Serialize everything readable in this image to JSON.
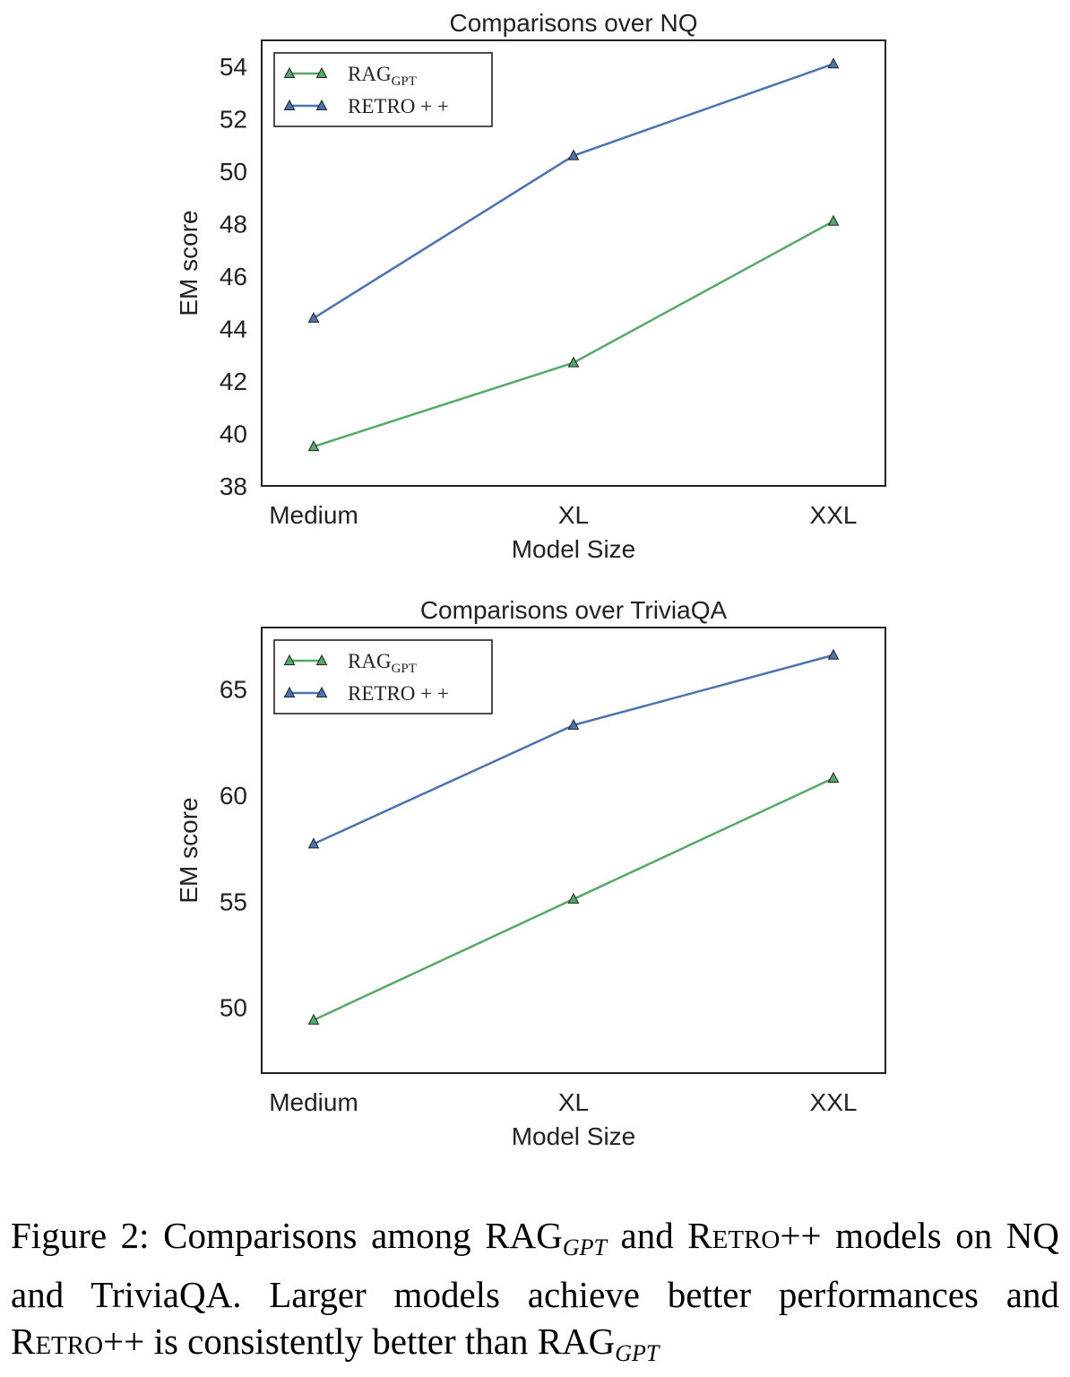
{
  "chart_data": [
    {
      "type": "line",
      "title": "Comparisons over NQ",
      "xlabel": "Model Size",
      "ylabel": "EM score",
      "categories": [
        "Medium",
        "XL",
        "XXL"
      ],
      "ylim": [
        38,
        55
      ],
      "yticks": [
        38,
        40,
        42,
        44,
        46,
        48,
        50,
        52,
        54
      ],
      "grid": false,
      "legend_position": "top-left",
      "series": [
        {
          "name": "RAG",
          "name_sub": "GPT",
          "color": "#55a868",
          "values": [
            39.5,
            42.7,
            48.1
          ]
        },
        {
          "name": "RETRO + +",
          "name_sub": "",
          "color": "#4c72b0",
          "values": [
            44.4,
            50.6,
            54.1
          ]
        }
      ]
    },
    {
      "type": "line",
      "title": "Comparisons over TriviaQA",
      "xlabel": "Model Size",
      "ylabel": "EM score",
      "categories": [
        "Medium",
        "XL",
        "XXL"
      ],
      "ylim": [
        46.9,
        67.9
      ],
      "yticks": [
        50,
        55,
        60,
        65
      ],
      "grid": false,
      "legend_position": "top-left",
      "series": [
        {
          "name": "RAG",
          "name_sub": "GPT",
          "color": "#55a868",
          "values": [
            49.4,
            55.1,
            60.8
          ]
        },
        {
          "name": "RETRO + +",
          "name_sub": "",
          "color": "#4c72b0",
          "values": [
            57.7,
            63.3,
            66.6
          ]
        }
      ]
    }
  ],
  "caption": {
    "label": "Figure 2:",
    "p1": " Comparisons among RAG",
    "sub1": "GPT",
    "p2": " and ",
    "retro1": "Retro",
    "p3": "++ models on NQ and TriviaQA. Larger models achieve better performances and ",
    "retro2": "Retro",
    "p4": "++ is consistently better than RAG",
    "sub2": "GPT"
  }
}
